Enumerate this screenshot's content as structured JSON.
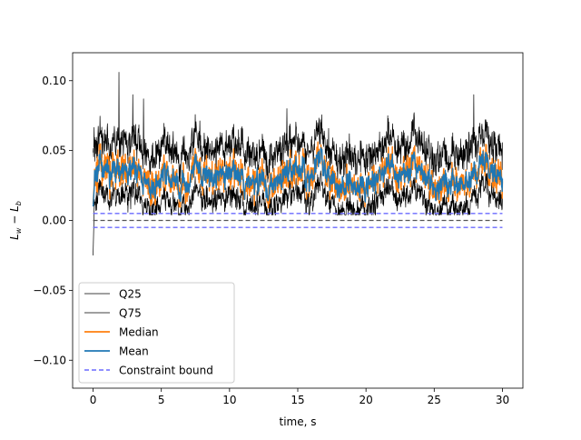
{
  "chart_data": {
    "type": "line",
    "title": "",
    "xlabel": "time, s",
    "ylabel": "L_w − L_b",
    "ylabel_parts": {
      "main": "L",
      "sub1": "w",
      "minus": " − ",
      "main2": "L",
      "sub2": "b"
    },
    "xlim": [
      -1.5,
      31.5
    ],
    "ylim": [
      -0.12,
      0.12
    ],
    "xticks": [
      0,
      5,
      10,
      15,
      20,
      25,
      30
    ],
    "xtick_labels": [
      "0",
      "5",
      "10",
      "15",
      "20",
      "25",
      "30"
    ],
    "yticks": [
      -0.1,
      -0.05,
      0.0,
      0.05,
      0.1
    ],
    "ytick_labels": [
      "−0.10",
      "−0.05",
      "0.00",
      "0.05",
      "0.10"
    ],
    "grid": false,
    "legend_position": "lower-left",
    "x_range": [
      0,
      30
    ],
    "series": [
      {
        "name": "Q25",
        "color": "#000000",
        "style": "solid",
        "typical": 0.022,
        "approx_range": [
          -0.025,
          0.035
        ]
      },
      {
        "name": "Q75",
        "color": "#000000",
        "style": "solid",
        "typical": 0.045,
        "approx_range": [
          0.01,
          0.106
        ]
      },
      {
        "name": "Median",
        "color": "#ff7f0e",
        "style": "solid",
        "typical": 0.033,
        "approx_range": [
          0.01,
          0.07
        ]
      },
      {
        "name": "Mean",
        "color": "#1f77b4",
        "style": "solid",
        "typical": 0.032,
        "approx_range": [
          0.012,
          0.065
        ]
      },
      {
        "name": "Constraint bound",
        "color": "#6a6aff",
        "style": "dashed",
        "values": [
          0.005,
          -0.005
        ]
      }
    ],
    "reference_line": {
      "y": 0.0,
      "color": "#555555",
      "style": "dashed"
    }
  }
}
